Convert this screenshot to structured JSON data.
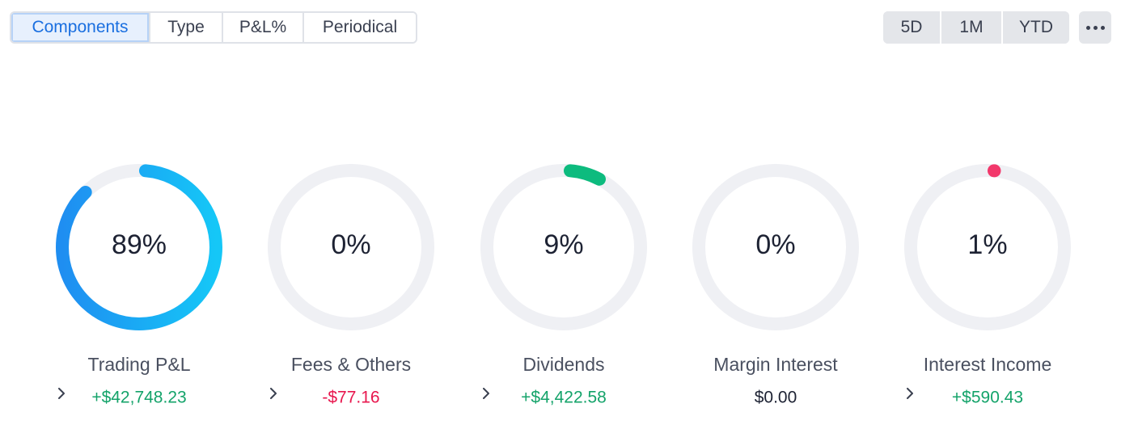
{
  "tabs": [
    {
      "label": "Components",
      "active": true
    },
    {
      "label": "Type",
      "active": false
    },
    {
      "label": "P&L%",
      "active": false
    },
    {
      "label": "Periodical",
      "active": false
    }
  ],
  "periods": [
    "5D",
    "1M",
    "YTD"
  ],
  "more_icon": "more-horizontal-icon",
  "colors": {
    "track": "#eff0f4",
    "trading_start": "#1f8ef1",
    "trading_end": "#15c7f7",
    "dividends": "#0dbb7e",
    "interest_income": "#f2386b",
    "positive": "#14a36a",
    "negative": "#e8174e"
  },
  "components": [
    {
      "id": "trading-pl",
      "percent": 89,
      "percent_label": "89%",
      "label": "Trading P&L",
      "value": "+$42,748.23",
      "sign": "pos",
      "color": "gradient"
    },
    {
      "id": "fees-others",
      "percent": 0,
      "percent_label": "0%",
      "label": "Fees & Others",
      "value": "-$77.16",
      "sign": "neg",
      "color": "none"
    },
    {
      "id": "dividends",
      "percent": 9,
      "percent_label": "9%",
      "label": "Dividends",
      "value": "+$4,422.58",
      "sign": "pos",
      "color": "#0dbb7e"
    },
    {
      "id": "margin-interest",
      "percent": 0,
      "percent_label": "0%",
      "label": "Margin Interest",
      "value": "$0.00",
      "sign": "neu",
      "color": "none"
    },
    {
      "id": "interest-income",
      "percent": 1,
      "percent_label": "1%",
      "label": "Interest Income",
      "value": "+$590.43",
      "sign": "pos",
      "color": "#f2386b"
    }
  ]
}
